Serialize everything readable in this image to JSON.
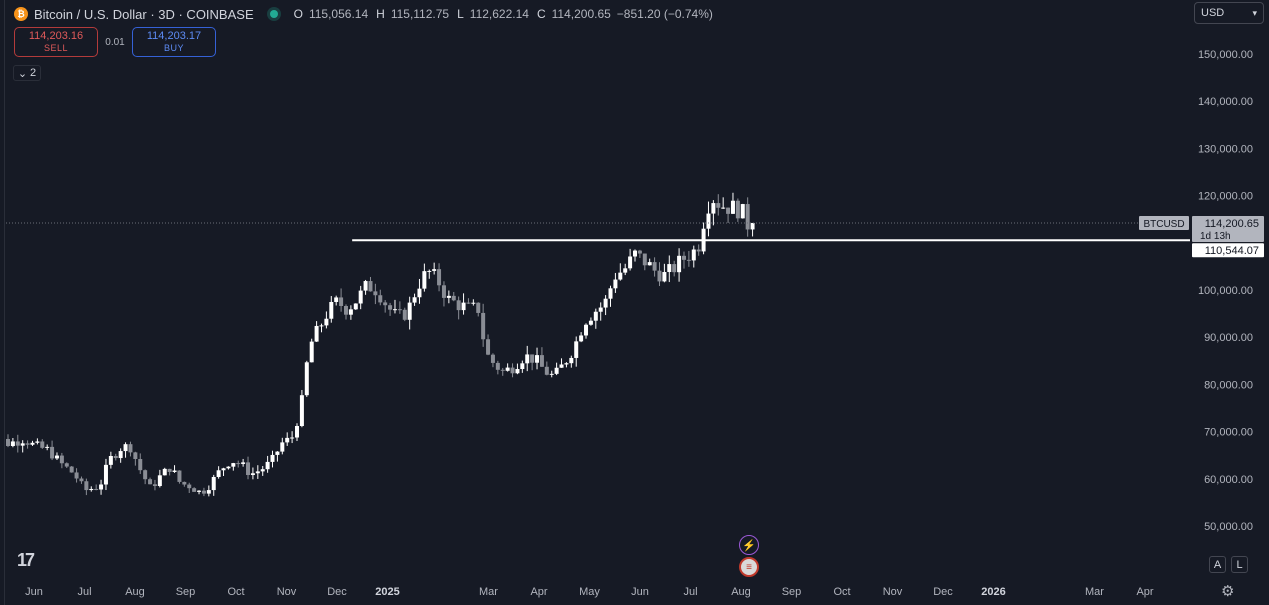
{
  "header": {
    "symbol_icon": "bitcoin-icon",
    "title": "Bitcoin / U.S. Dollar · 3D · COINBASE",
    "ohlc": [
      {
        "key": "O",
        "value": "115,056.14"
      },
      {
        "key": "H",
        "value": "115,112.75"
      },
      {
        "key": "L",
        "value": "112,622.14"
      },
      {
        "key": "C",
        "value": "114,200.65"
      }
    ],
    "change": "−851.20 (−0.74%)"
  },
  "trade": {
    "sell_price": "114,203.16",
    "sell_label": "SELL",
    "spread": "0.01",
    "buy_price": "114,203.17",
    "buy_label": "BUY"
  },
  "collapse_count": "2",
  "currency": "USD",
  "logo_text": "17",
  "scale_buttons": {
    "auto": "A",
    "log": "L"
  },
  "price_badges": {
    "symbol": "BTCUSD",
    "last_price": "114,200.65",
    "countdown": "1d 13h",
    "line_price": "110,544.07"
  },
  "colors": {
    "background": "#161a25",
    "up_candle": "#ffffff",
    "down_candle": "#8a8d95",
    "horizontal_line": "#ffffff",
    "axis_text": "#b2b5be"
  },
  "chart_data": {
    "type": "candlestick",
    "y_ticks": [
      {
        "value": 150000,
        "label": "150,000.00"
      },
      {
        "value": 140000,
        "label": "140,000.00"
      },
      {
        "value": 130000,
        "label": "130,000.00"
      },
      {
        "value": 120000,
        "label": "120,000.00"
      },
      {
        "value": 100000,
        "label": "100,000.00"
      },
      {
        "value": 90000,
        "label": "90,000.00"
      },
      {
        "value": 80000,
        "label": "80,000.00"
      },
      {
        "value": 70000,
        "label": "70,000.00"
      },
      {
        "value": 60000,
        "label": "60,000.00"
      },
      {
        "value": 50000,
        "label": "50,000.00"
      }
    ],
    "x_ticks": [
      {
        "label": "Jun",
        "month": 5
      },
      {
        "label": "Jul",
        "month": 6
      },
      {
        "label": "Aug",
        "month": 7
      },
      {
        "label": "Sep",
        "month": 8
      },
      {
        "label": "Oct",
        "month": 9
      },
      {
        "label": "Nov",
        "month": 10
      },
      {
        "label": "Dec",
        "month": 11
      },
      {
        "label": "2025",
        "month": 12,
        "bold": true
      },
      {
        "label": "Mar",
        "month": 14
      },
      {
        "label": "Apr",
        "month": 15
      },
      {
        "label": "May",
        "month": 16
      },
      {
        "label": "Jun",
        "month": 17
      },
      {
        "label": "Jul",
        "month": 18
      },
      {
        "label": "Aug",
        "month": 19
      },
      {
        "label": "Sep",
        "month": 20
      },
      {
        "label": "Oct",
        "month": 21
      },
      {
        "label": "Nov",
        "month": 22
      },
      {
        "label": "Dec",
        "month": 23
      },
      {
        "label": "2026",
        "month": 24,
        "bold": true
      },
      {
        "label": "Mar",
        "month": 26
      },
      {
        "label": "Apr",
        "month": 27
      }
    ],
    "horizontal_line": {
      "value": 110544.07,
      "from_month": 11.3
    },
    "last_price": 114200.65,
    "path": [
      [
        4.0,
        70500
      ],
      [
        4.2,
        69000
      ],
      [
        4.5,
        67500
      ],
      [
        4.8,
        68500
      ],
      [
        5.0,
        67000
      ],
      [
        5.3,
        66000
      ],
      [
        5.5,
        63500
      ],
      [
        5.8,
        61000
      ],
      [
        6.0,
        57500
      ],
      [
        6.3,
        58500
      ],
      [
        6.5,
        64000
      ],
      [
        6.7,
        66500
      ],
      [
        6.9,
        67000
      ],
      [
        7.1,
        62000
      ],
      [
        7.3,
        58000
      ],
      [
        7.5,
        60500
      ],
      [
        7.7,
        62500
      ],
      [
        7.9,
        59000
      ],
      [
        8.1,
        58500
      ],
      [
        8.3,
        57000
      ],
      [
        8.5,
        59000
      ],
      [
        8.7,
        62000
      ],
      [
        8.9,
        64000
      ],
      [
        9.1,
        63000
      ],
      [
        9.3,
        61000
      ],
      [
        9.5,
        62000
      ],
      [
        9.7,
        63500
      ],
      [
        9.9,
        67500
      ],
      [
        10.1,
        68500
      ],
      [
        10.2,
        72000
      ],
      [
        10.3,
        76000
      ],
      [
        10.45,
        88000
      ],
      [
        10.6,
        91000
      ],
      [
        10.8,
        95000
      ],
      [
        11.0,
        97500
      ],
      [
        11.2,
        96000
      ],
      [
        11.4,
        98000
      ],
      [
        11.6,
        101000
      ],
      [
        11.8,
        100000
      ],
      [
        12.0,
        96500
      ],
      [
        12.2,
        94000
      ],
      [
        12.4,
        95500
      ],
      [
        12.6,
        101000
      ],
      [
        12.8,
        104000
      ],
      [
        13.0,
        102000
      ],
      [
        13.2,
        98000
      ],
      [
        13.4,
        97000
      ],
      [
        13.6,
        96000
      ],
      [
        13.8,
        96000
      ],
      [
        13.95,
        86500
      ],
      [
        14.1,
        84500
      ],
      [
        14.3,
        82500
      ],
      [
        14.5,
        84000
      ],
      [
        14.7,
        86000
      ],
      [
        14.9,
        85500
      ],
      [
        15.1,
        83000
      ],
      [
        15.3,
        81500
      ],
      [
        15.5,
        84500
      ],
      [
        15.7,
        88000
      ],
      [
        15.9,
        93500
      ],
      [
        16.1,
        95500
      ],
      [
        16.3,
        97000
      ],
      [
        16.5,
        103000
      ],
      [
        16.7,
        104500
      ],
      [
        16.9,
        107500
      ],
      [
        17.1,
        106000
      ],
      [
        17.3,
        104000
      ],
      [
        17.5,
        103000
      ],
      [
        17.7,
        105000
      ],
      [
        17.9,
        107000
      ],
      [
        18.1,
        108500
      ],
      [
        18.2,
        110500
      ],
      [
        18.3,
        117500
      ],
      [
        18.45,
        119500
      ],
      [
        18.6,
        118000
      ],
      [
        18.8,
        117500
      ],
      [
        19.0,
        117000
      ],
      [
        19.15,
        113500
      ],
      [
        19.25,
        114200.65
      ]
    ]
  }
}
